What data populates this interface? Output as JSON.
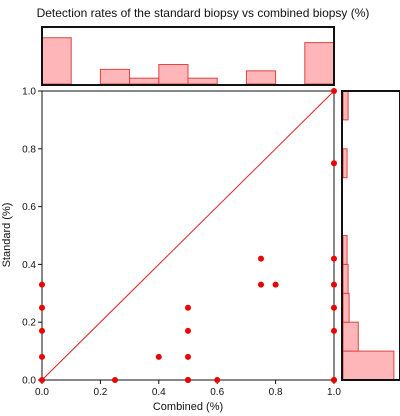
{
  "chart_data": {
    "type": "scatter",
    "title": "Detection rates of the standard biopsy vs combined biopsy (%)",
    "xlabel": "Combined (%)",
    "ylabel": "Standard (%)",
    "xlim": [
      0,
      1
    ],
    "ylim": [
      0,
      1
    ],
    "xticks": [
      "0.0",
      "0.2",
      "0.4",
      "0.6",
      "0.8",
      "1.0"
    ],
    "yticks": [
      "0.0",
      "0.2",
      "0.4",
      "0.6",
      "0.8",
      "1.0"
    ],
    "grid": false,
    "series": [
      {
        "x": [
          0.0,
          0.0,
          0.0,
          0.0,
          0.0,
          0.25,
          0.4,
          0.5,
          0.5,
          0.5,
          0.5,
          0.5,
          0.6,
          0.75,
          0.75,
          0.8,
          1.0,
          1.0,
          1.0,
          1.0,
          1.0,
          1.0,
          1.0,
          1.0
        ],
        "y": [
          0.0,
          0.08,
          0.17,
          0.25,
          0.33,
          0.0,
          0.08,
          0.0,
          0.08,
          0.17,
          0.25,
          0.0,
          0.0,
          0.33,
          0.42,
          0.33,
          0.0,
          0.17,
          0.25,
          0.33,
          0.42,
          0.75,
          1.0,
          0.0
        ]
      }
    ],
    "reference_line": {
      "from": [
        0,
        0
      ],
      "to": [
        1,
        1
      ]
    },
    "top_histogram": {
      "bin_edges": [
        0.0,
        0.1,
        0.2,
        0.3,
        0.4,
        0.5,
        0.6,
        0.7,
        0.8,
        0.9,
        1.0
      ],
      "values": [
        0.95,
        0,
        0.3,
        0.12,
        0.4,
        0.12,
        0,
        0.27,
        0,
        0.85
      ],
      "ylim": [
        0,
        1.15
      ]
    },
    "right_histogram": {
      "bin_edges": [
        0.0,
        0.1,
        0.2,
        0.3,
        0.4,
        0.5,
        0.6,
        0.7,
        0.8,
        0.9,
        1.0
      ],
      "values": [
        1.0,
        0.3,
        0.12,
        0.1,
        0.08,
        0,
        0,
        0.08,
        0,
        0.1
      ],
      "xlim": [
        0,
        1.1
      ]
    },
    "colors": {
      "point": "#ee0000",
      "line": "#dd2222",
      "hist_fill": "#ffb6b8",
      "hist_stroke": "#dd4444",
      "frame": "#111111"
    }
  }
}
